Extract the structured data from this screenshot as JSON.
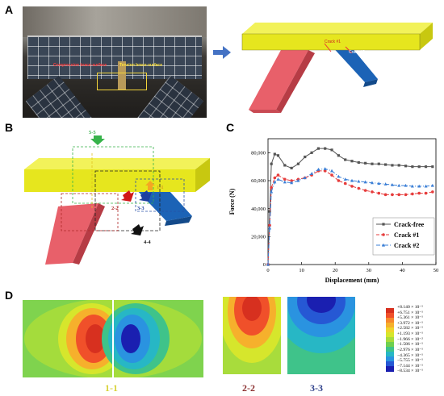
{
  "panels": {
    "a": "A",
    "b": "B",
    "c": "C",
    "d": "D"
  },
  "photo": {
    "annotation_left": "Compression brace-surface",
    "annotation_right": "Tension brace-surface"
  },
  "model": {
    "crack1": "Crack #1",
    "crack2": "Crack #2"
  },
  "sections": {
    "s55": "5-5",
    "s22": "2-2",
    "s33": "3-3",
    "s44": "4-4",
    "s11": "1-1"
  },
  "captions": {
    "c11": "1-1",
    "c22": "2-2",
    "c33": "3-3"
  },
  "colors": {
    "beam": "#e6e61e",
    "brace_left": "#e8606a",
    "brace_right": "#1c63b6",
    "crack_free": "#555555",
    "crack1": "#e63c3c",
    "crack2": "#3b7fd6",
    "caption_11": "#d8d23a",
    "caption_22": "#8b3030",
    "caption_33": "#2d3f8a"
  },
  "colorbar": {
    "labels": [
      "+8.140 × 10⁻¹",
      "+6.751 × 10⁻¹",
      "+5.361 × 10⁻¹",
      "+3.972 × 10⁻¹",
      "+2.582 × 10⁻¹",
      "+1.193 × 10⁻¹",
      "−1.966 × 10⁻²",
      "−1.586 × 10⁻¹",
      "−2.976 × 10⁻¹",
      "−4.365 × 10⁻¹",
      "−5.755 × 10⁻¹",
      "−7.144 × 10⁻¹",
      "−8.534 × 10⁻¹"
    ],
    "colors": [
      "#d7301f",
      "#f0502a",
      "#f7882d",
      "#f6b02c",
      "#efd42c",
      "#d6e62c",
      "#a8dc3c",
      "#6fd04f",
      "#3fc38a",
      "#27b7c5",
      "#2a93e0",
      "#2658d4",
      "#1a1fb0"
    ]
  },
  "chart_data": {
    "type": "line",
    "xlabel": "Displacement (mm)",
    "ylabel": "Force (N)",
    "xlim": [
      0,
      50
    ],
    "ylim": [
      0,
      90000
    ],
    "xticks": [
      0,
      10,
      20,
      30,
      40,
      50
    ],
    "yticks": [
      0,
      20000,
      40000,
      60000,
      80000
    ],
    "ytick_labels": [
      "0",
      "20,000",
      "40,000",
      "60,000",
      "80,000"
    ],
    "legend": "bottom-right",
    "series": [
      {
        "name": "Crack-free",
        "marker": "square",
        "x": [
          0,
          0.5,
          1,
          2,
          3,
          5,
          7,
          9,
          11,
          13,
          15,
          17,
          19,
          21,
          23,
          25,
          27,
          29,
          31,
          33,
          35,
          37,
          39,
          41,
          43,
          45,
          47,
          49
        ],
        "y": [
          0,
          38000,
          72000,
          79000,
          78000,
          71000,
          69000,
          72000,
          77000,
          80000,
          83000,
          83000,
          82000,
          78000,
          75000,
          74000,
          73000,
          72500,
          72000,
          72000,
          71500,
          71000,
          71000,
          70500,
          70000,
          70000,
          70000,
          70000
        ]
      },
      {
        "name": "Crack #1",
        "marker": "circle",
        "x": [
          0,
          0.5,
          1,
          2,
          3,
          5,
          7,
          9,
          11,
          13,
          15,
          17,
          19,
          21,
          23,
          25,
          27,
          29,
          31,
          33,
          35,
          37,
          39,
          41,
          43,
          45,
          47,
          49
        ],
        "y": [
          0,
          28000,
          55000,
          62000,
          64000,
          61000,
          60000,
          61000,
          62000,
          64000,
          67000,
          67000,
          64000,
          60000,
          58000,
          56000,
          54500,
          53000,
          52000,
          51000,
          50000,
          50000,
          50000,
          50000,
          50500,
          51000,
          51000,
          52000
        ]
      },
      {
        "name": "Crack #2",
        "marker": "triangle",
        "x": [
          0,
          0.5,
          1,
          2,
          3,
          5,
          7,
          9,
          11,
          13,
          15,
          17,
          19,
          21,
          23,
          25,
          27,
          29,
          31,
          33,
          35,
          37,
          39,
          41,
          43,
          45,
          47,
          49
        ],
        "y": [
          0,
          26000,
          52000,
          59000,
          61000,
          59000,
          58500,
          60000,
          62000,
          65000,
          68000,
          68500,
          67000,
          63000,
          61000,
          60000,
          59500,
          59000,
          58500,
          58000,
          57500,
          57000,
          56500,
          56500,
          56000,
          56000,
          56000,
          56500
        ]
      }
    ]
  }
}
